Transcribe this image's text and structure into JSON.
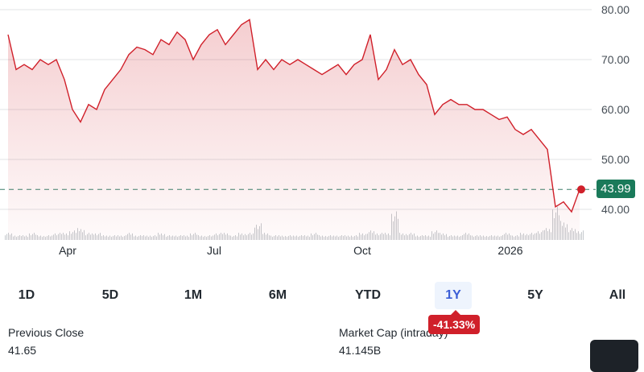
{
  "chart_data": {
    "type": "area",
    "y_ticks": [
      "80.00",
      "70.00",
      "60.00",
      "50.00",
      "40.00"
    ],
    "ylim": [
      36,
      81
    ],
    "x_ticks": [
      {
        "label": "Apr",
        "date": "2025-04-01"
      },
      {
        "label": "Jul",
        "date": "2025-07-01"
      },
      {
        "label": "Oct",
        "date": "2025-10-01"
      },
      {
        "label": "2026",
        "date": "2026-01-01"
      }
    ],
    "grid": true,
    "line_color": "#d0202a",
    "current_price": 43.99,
    "current_price_color": "#1a7a5a",
    "reference_line": 43.99,
    "series": [
      {
        "dates": [
          "2025-02-23",
          "2025-02-28",
          "2025-03-05",
          "2025-03-10",
          "2025-03-15",
          "2025-03-20",
          "2025-03-25",
          "2025-03-30",
          "2025-04-04",
          "2025-04-09",
          "2025-04-14",
          "2025-04-19",
          "2025-04-24",
          "2025-04-29",
          "2025-05-04",
          "2025-05-09",
          "2025-05-14",
          "2025-05-19",
          "2025-05-24",
          "2025-05-29",
          "2025-06-03",
          "2025-06-08",
          "2025-06-13",
          "2025-06-18",
          "2025-06-23",
          "2025-06-28",
          "2025-07-03",
          "2025-07-08",
          "2025-07-13",
          "2025-07-18",
          "2025-07-23",
          "2025-07-28",
          "2025-08-02",
          "2025-08-07",
          "2025-08-12",
          "2025-08-17",
          "2025-08-22",
          "2025-08-27",
          "2025-09-01",
          "2025-09-06",
          "2025-09-11",
          "2025-09-16",
          "2025-09-21",
          "2025-09-26",
          "2025-10-01",
          "2025-10-06",
          "2025-10-11",
          "2025-10-16",
          "2025-10-21",
          "2025-10-26",
          "2025-10-31",
          "2025-11-05",
          "2025-11-10",
          "2025-11-15",
          "2025-11-20",
          "2025-11-25",
          "2025-11-30",
          "2025-12-05",
          "2025-12-10",
          "2025-12-15",
          "2025-12-20",
          "2025-12-25",
          "2025-12-30",
          "2026-01-04",
          "2026-01-09",
          "2026-01-14",
          "2026-01-19",
          "2026-01-24",
          "2026-01-29",
          "2026-02-03",
          "2026-02-08",
          "2026-02-13"
        ],
        "values": [
          75,
          68,
          69,
          68,
          70,
          69,
          70,
          66,
          60,
          57.5,
          61,
          60,
          64,
          66,
          68,
          71,
          72.5,
          72,
          71,
          74,
          73,
          75.5,
          74,
          70,
          73,
          75,
          76,
          73,
          75,
          77,
          78,
          68,
          70,
          68,
          70,
          69,
          70,
          69,
          68,
          67,
          68,
          69,
          67,
          69,
          70,
          75,
          66,
          68,
          72,
          69,
          70,
          67,
          65,
          59,
          61,
          62,
          61,
          61,
          60,
          60,
          59,
          58,
          58.5,
          56,
          55,
          56,
          54,
          52,
          40.5,
          41.5,
          39.5,
          43.99
        ],
        "volume": [
          3,
          2,
          2,
          3,
          2,
          2,
          3,
          3,
          4,
          5,
          3,
          3,
          2,
          2,
          2,
          3,
          2,
          2,
          2,
          3,
          2,
          2,
          2,
          3,
          2,
          2,
          3,
          3,
          2,
          3,
          3,
          7,
          3,
          2,
          2,
          2,
          2,
          2,
          3,
          2,
          2,
          2,
          2,
          2,
          3,
          4,
          3,
          3,
          12,
          3,
          3,
          2,
          2,
          4,
          3,
          2,
          2,
          3,
          2,
          2,
          2,
          2,
          3,
          2,
          3,
          3,
          4,
          5,
          14,
          8,
          5,
          4
        ]
      }
    ]
  },
  "ranges": [
    "1D",
    "5D",
    "1M",
    "6M",
    "YTD",
    "1Y",
    "5Y",
    "All"
  ],
  "active_range": "1Y",
  "change_badge": "-41.33%",
  "price_tag": "43.99",
  "stats": {
    "previous_close_label": "Previous Close",
    "previous_close_value": "41.65",
    "market_cap_label": "Market Cap (intraday)",
    "market_cap_value": "41.145B"
  }
}
